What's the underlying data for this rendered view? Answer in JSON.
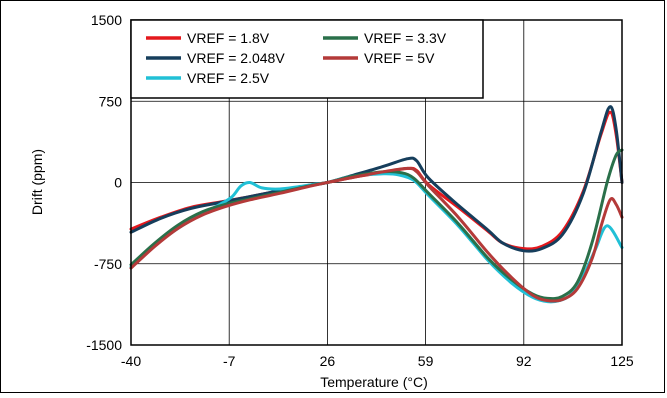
{
  "chart_data": {
    "type": "line",
    "xlabel": "Temperature (°C)",
    "ylabel": "Drift (ppm)",
    "xlim": [
      -40,
      125
    ],
    "ylim": [
      -1500,
      1500
    ],
    "x_ticks": [
      "-40",
      "-7",
      "26",
      "59",
      "92",
      "125"
    ],
    "y_ticks": [
      "1500",
      "750",
      "0",
      "-750",
      "-1500"
    ],
    "grid": true,
    "legend_position": "top-left",
    "series": [
      {
        "name": "VREF = 1.8V",
        "color": "#e4181d",
        "x": [
          -40,
          -30,
          -20,
          -10,
          0,
          10,
          20,
          26,
          35,
          45,
          53,
          56,
          60,
          70,
          80,
          85,
          92,
          98,
          105,
          112,
          118,
          121,
          123,
          125
        ],
        "y": [
          -430,
          -320,
          -230,
          -180,
          -130,
          -75,
          -25,
          0,
          50,
          95,
          130,
          110,
          -20,
          -230,
          -450,
          -560,
          -610,
          -590,
          -450,
          -80,
          450,
          650,
          450,
          0
        ]
      },
      {
        "name": "VREF = 2.048V",
        "color": "#163e5c",
        "x": [
          -40,
          -30,
          -20,
          -10,
          0,
          10,
          20,
          26,
          35,
          45,
          53,
          56,
          60,
          70,
          80,
          85,
          92,
          98,
          105,
          112,
          118,
          121,
          123,
          125
        ],
        "y": [
          -460,
          -330,
          -240,
          -185,
          -130,
          -75,
          -25,
          0,
          70,
          150,
          220,
          200,
          40,
          -210,
          -440,
          -560,
          -630,
          -610,
          -480,
          -100,
          470,
          700,
          500,
          0
        ]
      },
      {
        "name": "VREF = 2.5V",
        "color": "#21c0d6",
        "x": [
          -40,
          -32,
          -24,
          -16,
          -10,
          -6,
          -3,
          0,
          4,
          10,
          16,
          22,
          26,
          35,
          45,
          50,
          55,
          60,
          70,
          80,
          88,
          95,
          100,
          104,
          108,
          112,
          116,
          120,
          125
        ],
        "y": [
          -780,
          -580,
          -420,
          -290,
          -200,
          -130,
          -30,
          0,
          -50,
          -60,
          -40,
          -15,
          0,
          60,
          80,
          70,
          20,
          -120,
          -400,
          -720,
          -930,
          -1060,
          -1100,
          -1090,
          -1030,
          -860,
          -620,
          -400,
          -600
        ]
      },
      {
        "name": "VREF = 3.3V",
        "color": "#2a704a",
        "x": [
          -40,
          -32,
          -24,
          -16,
          -8,
          0,
          10,
          20,
          26,
          35,
          45,
          51,
          55,
          60,
          70,
          80,
          88,
          95,
          100,
          105,
          110,
          115,
          120,
          123,
          125
        ],
        "y": [
          -760,
          -560,
          -390,
          -270,
          -200,
          -150,
          -90,
          -30,
          0,
          60,
          100,
          90,
          40,
          -100,
          -380,
          -700,
          -900,
          -1030,
          -1070,
          -1050,
          -920,
          -550,
          0,
          250,
          300
        ]
      },
      {
        "name": "VREF = 5V",
        "color": "#b43a39",
        "x": [
          -40,
          -32,
          -24,
          -16,
          -8,
          0,
          10,
          20,
          26,
          35,
          45,
          53,
          56,
          60,
          70,
          80,
          88,
          95,
          100,
          105,
          110,
          115,
          118,
          121,
          123,
          125
        ],
        "y": [
          -790,
          -590,
          -420,
          -300,
          -220,
          -160,
          -100,
          -35,
          0,
          50,
          100,
          130,
          100,
          -30,
          -320,
          -650,
          -880,
          -1040,
          -1090,
          -1080,
          -980,
          -700,
          -400,
          -160,
          -200,
          -320
        ]
      }
    ]
  }
}
